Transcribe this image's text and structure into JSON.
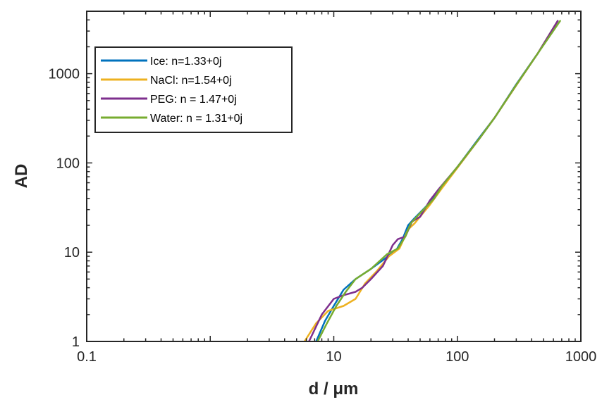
{
  "chart_data": {
    "type": "line",
    "title": "",
    "xlabel": "d / μm",
    "ylabel": "AD",
    "xscale": "log",
    "yscale": "log",
    "xlim": [
      0.1,
      1000
    ],
    "ylim": [
      1,
      5000
    ],
    "xticks": [
      0.1,
      10,
      100,
      1000
    ],
    "xtick_labels": [
      "0.1",
      "10",
      "100",
      "1000"
    ],
    "yticks": [
      1,
      10,
      100,
      1000
    ],
    "ytick_labels": [
      "1",
      "10",
      "100",
      "1000"
    ],
    "grid": false,
    "legend_position": "top-left",
    "series": [
      {
        "name": "Ice: n=1.33+0j",
        "color": "#0072BD",
        "points": [
          [
            7.2,
            1.0
          ],
          [
            8.5,
            1.7
          ],
          [
            10,
            2.5
          ],
          [
            12,
            3.8
          ],
          [
            15,
            5.0
          ],
          [
            20,
            6.5
          ],
          [
            26,
            8.5
          ],
          [
            32,
            10.5
          ],
          [
            36,
            14
          ],
          [
            40,
            20
          ],
          [
            45,
            24
          ],
          [
            60,
            36
          ],
          [
            70,
            48
          ],
          [
            100,
            90
          ],
          [
            150,
            190
          ],
          [
            200,
            320
          ],
          [
            300,
            760
          ],
          [
            450,
            1700
          ],
          [
            650,
            3900
          ]
        ]
      },
      {
        "name": "NaCl: n=1.54+0j",
        "color": "#EDB120",
        "points": [
          [
            5.8,
            1.0
          ],
          [
            7.2,
            1.6
          ],
          [
            9,
            2.2
          ],
          [
            12,
            2.5
          ],
          [
            15,
            3.0
          ],
          [
            18,
            4.5
          ],
          [
            22,
            6.0
          ],
          [
            28,
            9.0
          ],
          [
            34,
            11
          ],
          [
            40,
            18
          ],
          [
            45,
            21
          ],
          [
            60,
            34
          ],
          [
            75,
            52
          ],
          [
            100,
            88
          ],
          [
            150,
            185
          ],
          [
            200,
            320
          ],
          [
            300,
            740
          ],
          [
            450,
            1700
          ],
          [
            650,
            3900
          ]
        ]
      },
      {
        "name": "PEG: n = 1.47+0j",
        "color": "#7E2F8E",
        "points": [
          [
            6.3,
            1.0
          ],
          [
            8,
            2.0
          ],
          [
            10,
            3.0
          ],
          [
            12,
            3.3
          ],
          [
            15,
            3.6
          ],
          [
            17,
            4.0
          ],
          [
            20,
            5.0
          ],
          [
            25,
            7.0
          ],
          [
            30,
            12
          ],
          [
            33,
            14
          ],
          [
            38,
            15
          ],
          [
            43,
            22
          ],
          [
            50,
            25
          ],
          [
            60,
            38
          ],
          [
            70,
            50
          ],
          [
            100,
            90
          ],
          [
            150,
            185
          ],
          [
            200,
            320
          ],
          [
            300,
            750
          ],
          [
            450,
            1700
          ],
          [
            650,
            3900
          ]
        ]
      },
      {
        "name": "Water: n = 1.31+0j",
        "color": "#77AC30",
        "points": [
          [
            7.4,
            1.0
          ],
          [
            8.8,
            1.6
          ],
          [
            10.5,
            2.5
          ],
          [
            12.5,
            3.6
          ],
          [
            15,
            5.0
          ],
          [
            20,
            6.5
          ],
          [
            27,
            9.5
          ],
          [
            33,
            11
          ],
          [
            38,
            15
          ],
          [
            42,
            21
          ],
          [
            47,
            25
          ],
          [
            65,
            40
          ],
          [
            75,
            55
          ],
          [
            100,
            90
          ],
          [
            150,
            185
          ],
          [
            200,
            320
          ],
          [
            300,
            750
          ],
          [
            450,
            1700
          ],
          [
            680,
            3900
          ]
        ]
      }
    ]
  }
}
